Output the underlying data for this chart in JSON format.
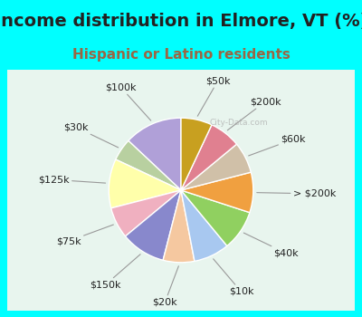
{
  "title": "Income distribution in Elmore, VT (%)",
  "subtitle": "Hispanic or Latino residents",
  "watermark": "© City-Data.com",
  "background_cyan": "#00ffff",
  "background_chart": "#d8f0e8",
  "labels": [
    "$100k",
    "$30k",
    "$125k",
    "$75k",
    "$150k",
    "$20k",
    "$10k",
    "$40k",
    "> $200k",
    "$60k",
    "$200k",
    "$50k"
  ],
  "values": [
    13,
    5,
    11,
    7,
    10,
    7,
    8,
    9,
    9,
    7,
    7,
    7
  ],
  "colors": [
    "#b0a0d8",
    "#b8d0a0",
    "#ffffaa",
    "#f0b0c0",
    "#8888cc",
    "#f5c8a0",
    "#a8c8f0",
    "#90d060",
    "#f0a040",
    "#d0c0a8",
    "#e08090",
    "#c8a020"
  ],
  "startangle": 90,
  "title_fontsize": 14,
  "subtitle_fontsize": 11,
  "label_fontsize": 8,
  "title_color": "#222222",
  "subtitle_color": "#996644"
}
